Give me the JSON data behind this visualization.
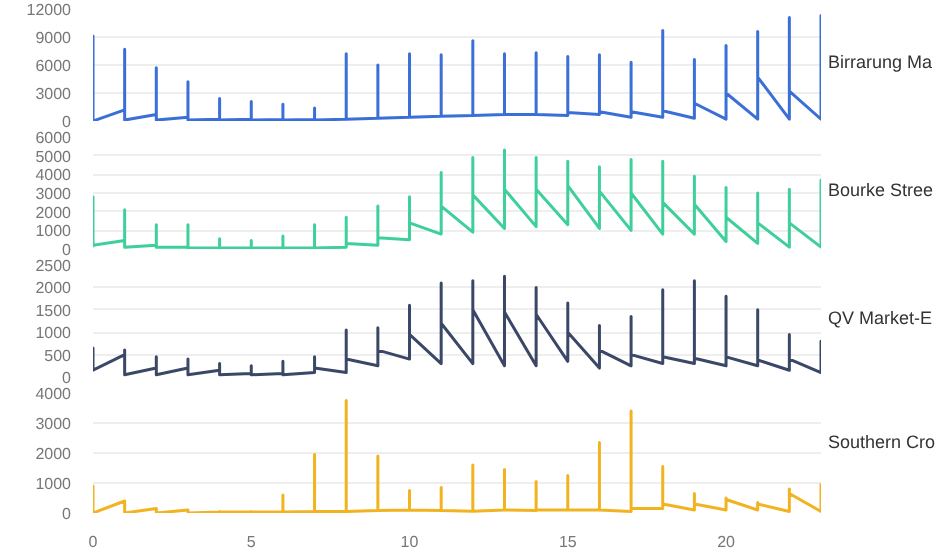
{
  "chart_data": [
    {
      "type": "line",
      "xlim": [
        0,
        23
      ],
      "ylim": [
        0,
        12000
      ],
      "yticks": [
        0,
        3000,
        6000,
        9000,
        12000
      ],
      "grid": "y",
      "tick_labels": "y",
      "series": [
        {
          "name": "Birrarung Ma",
          "color": "#3b6fd8",
          "x": [
            0,
            0,
            0,
            1,
            1,
            1,
            2,
            2,
            2,
            3,
            3,
            3,
            4,
            4,
            4,
            5,
            5,
            5,
            6,
            6,
            6,
            7,
            7,
            7,
            8,
            8,
            8,
            9,
            9,
            9,
            10,
            10,
            10,
            11,
            11,
            11,
            12,
            12,
            12,
            13,
            13,
            13,
            14,
            14,
            14,
            15,
            15,
            15,
            16,
            16,
            16,
            17,
            17,
            17,
            18,
            18,
            18,
            19,
            19,
            19,
            20,
            20,
            20,
            21,
            21,
            21,
            22,
            22,
            22,
            23,
            23,
            23
          ],
          "values": [
            0,
            9100,
            0,
            1200,
            7700,
            100,
            700,
            5700,
            100,
            400,
            4200,
            100,
            200,
            2400,
            100,
            200,
            2100,
            100,
            150,
            1800,
            100,
            150,
            1400,
            100,
            200,
            7200,
            200,
            300,
            6000,
            300,
            400,
            7200,
            400,
            500,
            7100,
            500,
            600,
            8600,
            600,
            700,
            7200,
            700,
            700,
            7300,
            700,
            600,
            6900,
            900,
            700,
            7100,
            1000,
            400,
            6300,
            1000,
            400,
            9700,
            1100,
            300,
            6600,
            1900,
            200,
            8100,
            3000,
            200,
            9600,
            4700,
            200,
            11100,
            3200,
            200,
            11300,
            200
          ]
        }
      ]
    },
    {
      "type": "line",
      "xlim": [
        0,
        23
      ],
      "ylim": [
        0,
        6000
      ],
      "yticks": [
        0,
        1000,
        2000,
        3000,
        4000,
        5000,
        6000
      ],
      "grid": "y",
      "tick_labels": "y",
      "series": [
        {
          "name": "Bourke Stree",
          "color": "#3ecf9a",
          "x": [
            0,
            0,
            0,
            1,
            1,
            1,
            2,
            2,
            2,
            3,
            3,
            3,
            4,
            4,
            4,
            5,
            5,
            5,
            6,
            6,
            6,
            7,
            7,
            7,
            8,
            8,
            8,
            9,
            9,
            9,
            10,
            10,
            10,
            11,
            11,
            11,
            12,
            12,
            12,
            13,
            13,
            13,
            14,
            14,
            14,
            15,
            15,
            15,
            16,
            16,
            16,
            17,
            17,
            17,
            18,
            18,
            18,
            19,
            19,
            19,
            20,
            20,
            20,
            21,
            21,
            21,
            22,
            22,
            22,
            23,
            23,
            23
          ],
          "values": [
            100,
            2800,
            200,
            450,
            2100,
            100,
            200,
            1300,
            100,
            100,
            1300,
            50,
            50,
            550,
            50,
            50,
            450,
            50,
            50,
            700,
            50,
            50,
            1300,
            50,
            100,
            1700,
            300,
            200,
            2300,
            600,
            500,
            2800,
            1400,
            800,
            4100,
            2300,
            900,
            4900,
            2900,
            1100,
            5300,
            3200,
            1200,
            4900,
            3200,
            1300,
            4700,
            3400,
            1100,
            4400,
            3100,
            1000,
            4800,
            3000,
            800,
            4700,
            2500,
            800,
            3900,
            2400,
            400,
            3300,
            1700,
            300,
            3000,
            1400,
            100,
            3200,
            1400,
            100,
            3700,
            100
          ]
        }
      ]
    },
    {
      "type": "line",
      "xlim": [
        0,
        23
      ],
      "ylim": [
        0,
        2500
      ],
      "yticks": [
        0,
        500,
        1000,
        1500,
        2000,
        2500
      ],
      "grid": "y",
      "tick_labels": "y",
      "series": [
        {
          "name": "QV Market-E",
          "color": "#3a4766",
          "x": [
            0,
            0,
            0,
            1,
            1,
            1,
            2,
            2,
            2,
            3,
            3,
            3,
            4,
            4,
            4,
            5,
            5,
            5,
            6,
            6,
            6,
            7,
            7,
            7,
            8,
            8,
            8,
            9,
            9,
            9,
            10,
            10,
            10,
            11,
            11,
            11,
            12,
            12,
            12,
            13,
            13,
            13,
            14,
            14,
            14,
            15,
            15,
            15,
            16,
            16,
            16,
            17,
            17,
            17,
            18,
            18,
            18,
            19,
            19,
            19,
            20,
            20,
            20,
            21,
            21,
            21,
            22,
            22,
            22,
            23,
            23,
            23
          ],
          "values": [
            150,
            650,
            150,
            500,
            600,
            50,
            200,
            450,
            50,
            200,
            400,
            50,
            150,
            300,
            50,
            80,
            250,
            50,
            80,
            350,
            50,
            100,
            450,
            200,
            100,
            1050,
            400,
            250,
            1100,
            600,
            400,
            1600,
            950,
            300,
            2100,
            1200,
            300,
            2150,
            1500,
            250,
            2250,
            1450,
            250,
            2000,
            1400,
            350,
            1650,
            1000,
            200,
            1150,
            600,
            250,
            1350,
            500,
            300,
            1950,
            450,
            300,
            2150,
            420,
            250,
            1800,
            450,
            250,
            1500,
            380,
            150,
            950,
            400,
            100,
            800,
            200
          ]
        }
      ]
    },
    {
      "type": "line",
      "xlim": [
        0,
        23
      ],
      "xticks": [
        0,
        5,
        10,
        15,
        20
      ],
      "ylim": [
        0,
        4000
      ],
      "yticks": [
        0,
        1000,
        2000,
        3000,
        4000
      ],
      "grid": "y",
      "series": [
        {
          "name": "Southern Cro",
          "color": "#f2b320",
          "x": [
            0,
            0,
            0,
            1,
            1,
            1,
            2,
            2,
            2,
            3,
            3,
            3,
            4,
            4,
            4,
            5,
            5,
            5,
            6,
            6,
            6,
            7,
            7,
            7,
            8,
            8,
            8,
            9,
            9,
            9,
            10,
            10,
            10,
            11,
            11,
            11,
            12,
            12,
            12,
            13,
            13,
            13,
            14,
            14,
            14,
            15,
            15,
            15,
            16,
            16,
            16,
            17,
            17,
            17,
            18,
            18,
            18,
            19,
            19,
            19,
            20,
            20,
            20,
            21,
            21,
            21,
            22,
            22,
            22,
            23,
            23,
            23
          ],
          "values": [
            0,
            900,
            0,
            400,
            400,
            0,
            150,
            150,
            0,
            100,
            100,
            0,
            30,
            50,
            30,
            30,
            50,
            30,
            30,
            600,
            30,
            50,
            1950,
            50,
            50,
            3750,
            50,
            80,
            1900,
            80,
            100,
            750,
            100,
            80,
            850,
            80,
            60,
            1600,
            60,
            100,
            1450,
            100,
            80,
            1050,
            100,
            100,
            1250,
            100,
            100,
            2350,
            100,
            50,
            3400,
            150,
            150,
            1550,
            300,
            100,
            650,
            300,
            100,
            500,
            450,
            100,
            350,
            300,
            50,
            800,
            650,
            50,
            950,
            50
          ]
        }
      ]
    }
  ]
}
